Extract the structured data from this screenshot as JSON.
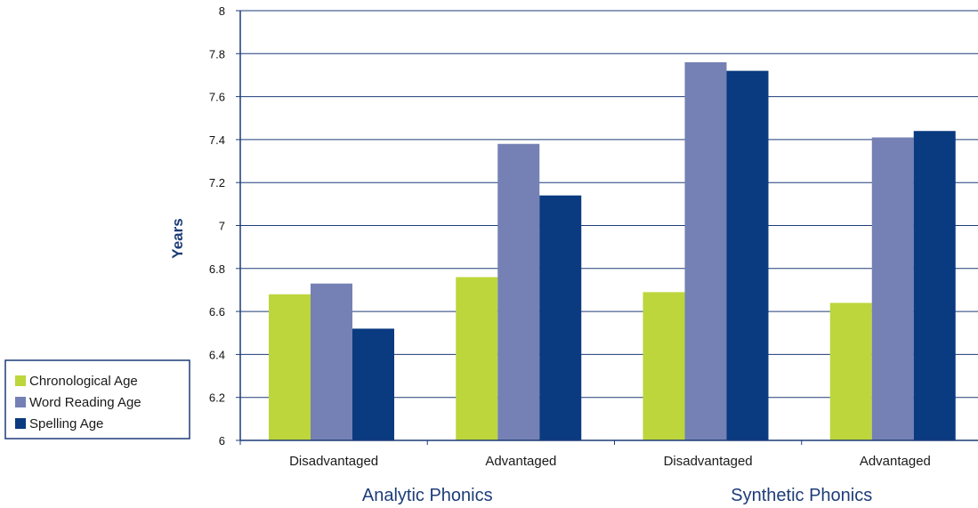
{
  "chart_data": {
    "type": "bar",
    "ylabel": "Years",
    "xlabel": "",
    "ylim": [
      6,
      8
    ],
    "yticks": [
      "6",
      "6.2",
      "6.4",
      "6.6",
      "6.8",
      "7",
      "7.2",
      "7.4",
      "7.6",
      "7.8",
      "8"
    ],
    "ytick_values": [
      6,
      6.2,
      6.4,
      6.6,
      6.8,
      7,
      7.2,
      7.4,
      7.6,
      7.8,
      8
    ],
    "categories": [
      "Disadvantaged",
      "Advantaged",
      "Disadvantaged",
      "Advantaged"
    ],
    "groups": [
      {
        "label": "Analytic Phonics",
        "span": [
          0,
          1
        ]
      },
      {
        "label": "Synthetic Phonics",
        "span": [
          2,
          3
        ]
      }
    ],
    "series": [
      {
        "name": "Chronological Age",
        "color": "#bdd63c",
        "values": [
          6.68,
          6.76,
          6.69,
          6.64
        ]
      },
      {
        "name": "Word Reading Age",
        "color": "#7581b4",
        "values": [
          6.73,
          7.38,
          7.76,
          7.41
        ]
      },
      {
        "name": "Spelling Age",
        "color": "#0a3a80",
        "values": [
          6.52,
          7.14,
          7.72,
          7.44
        ]
      }
    ],
    "grid": true,
    "legend_position": "left"
  }
}
